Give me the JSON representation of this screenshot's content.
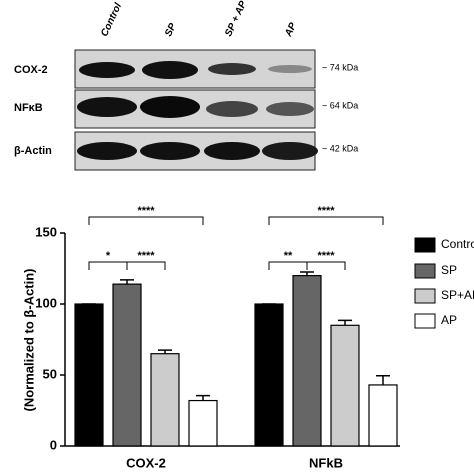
{
  "blot": {
    "lanes": [
      "Control",
      "SP",
      "SP + AP",
      "AP"
    ],
    "rows": [
      {
        "label": "COX-2",
        "kda": "~ 74 kDa"
      },
      {
        "label": "NFκB",
        "kda": "~ 64 kDa"
      },
      {
        "label": "β-Actin",
        "kda": "~ 42 kDa"
      }
    ]
  },
  "chart_data": {
    "type": "bar",
    "y_label": "(Normalized to β-Actin)",
    "categories": [
      "COX-2",
      "NFkB"
    ],
    "series": [
      {
        "name": "Control",
        "color": "#000000",
        "values": [
          100,
          100
        ],
        "errors": [
          0,
          0
        ]
      },
      {
        "name": "SP",
        "color": "#666666",
        "values": [
          114,
          120
        ],
        "errors": [
          3,
          2.5
        ]
      },
      {
        "name": "SP+AP",
        "color": "#cccccc",
        "values": [
          65,
          85
        ],
        "errors": [
          2.5,
          3.5
        ]
      },
      {
        "name": "AP",
        "color": "#ffffff",
        "values": [
          32,
          43
        ],
        "errors": [
          3.5,
          6.5
        ]
      }
    ],
    "significance": [
      [
        "*",
        "****",
        "****"
      ],
      [
        "**",
        "****",
        "****"
      ]
    ],
    "ylim": [
      0,
      150
    ],
    "yticks": [
      0,
      50,
      100,
      150
    ]
  }
}
